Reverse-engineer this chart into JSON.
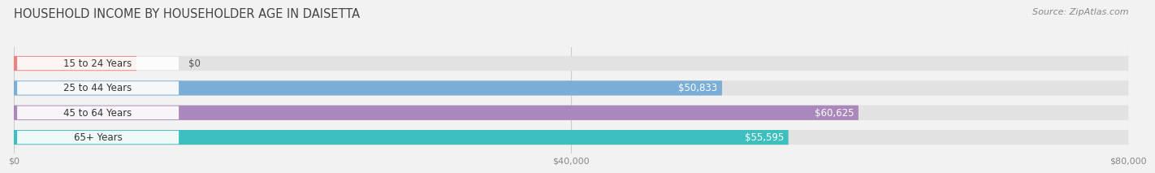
{
  "title": "HOUSEHOLD INCOME BY HOUSEHOLDER AGE IN DAISETTA",
  "source": "Source: ZipAtlas.com",
  "categories": [
    "15 to 24 Years",
    "25 to 44 Years",
    "45 to 64 Years",
    "65+ Years"
  ],
  "values": [
    0,
    50833,
    60625,
    55595
  ],
  "bar_colors": [
    "#f08080",
    "#7aaed6",
    "#aa88bb",
    "#3dbfbf"
  ],
  "value_labels": [
    "$0",
    "$50,833",
    "$60,625",
    "$55,595"
  ],
  "xlim": [
    0,
    80000
  ],
  "xtick_labels": [
    "$0",
    "$40,000",
    "$80,000"
  ],
  "xtick_values": [
    0,
    40000,
    80000
  ],
  "background_color": "#f2f2f2",
  "bar_background": "#e2e2e2",
  "title_fontsize": 10.5,
  "source_fontsize": 8,
  "label_fontsize": 8.5,
  "value_fontsize": 8.5,
  "bar_height": 0.6
}
